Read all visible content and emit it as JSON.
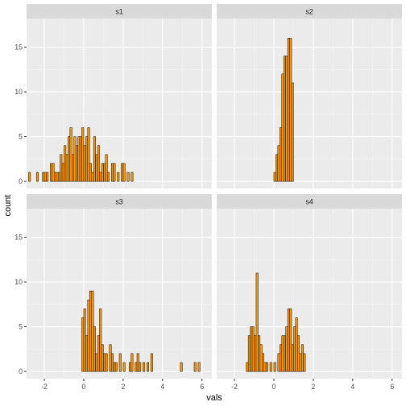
{
  "chart_data": {
    "type": "bar",
    "xlabel": "vals",
    "ylabel": "count",
    "xlim": [
      -2.9,
      6.5
    ],
    "ylim": [
      -0.8,
      18.2
    ],
    "x_ticks": [
      -2,
      0,
      2,
      4,
      6
    ],
    "y_ticks": [
      0,
      5,
      10,
      15
    ],
    "bin_start": -2.8,
    "bin_width": 0.1,
    "bin_count": 90,
    "bar_fill": "#FF9900",
    "bar_stroke": "#000000",
    "panels": [
      {
        "name": "s1",
        "bins": [
          [
            -2.75,
            1
          ],
          [
            -2.35,
            1
          ],
          [
            -2.05,
            1
          ],
          [
            -1.95,
            1
          ],
          [
            -1.85,
            1
          ],
          [
            -1.65,
            2
          ],
          [
            -1.55,
            2
          ],
          [
            -1.45,
            1
          ],
          [
            -1.35,
            1
          ],
          [
            -1.25,
            1
          ],
          [
            -1.15,
            3
          ],
          [
            -1.05,
            2
          ],
          [
            -0.95,
            4
          ],
          [
            -0.85,
            3
          ],
          [
            -0.75,
            5
          ],
          [
            -0.65,
            6
          ],
          [
            -0.55,
            3
          ],
          [
            -0.45,
            5
          ],
          [
            -0.35,
            4
          ],
          [
            -0.25,
            5
          ],
          [
            -0.15,
            5
          ],
          [
            -0.05,
            6
          ],
          [
            0.05,
            4
          ],
          [
            0.15,
            5
          ],
          [
            0.25,
            6
          ],
          [
            0.35,
            2
          ],
          [
            0.45,
            1
          ],
          [
            0.55,
            5
          ],
          [
            0.65,
            3
          ],
          [
            0.75,
            4
          ],
          [
            0.85,
            1
          ],
          [
            0.95,
            2
          ],
          [
            1.05,
            2
          ],
          [
            1.15,
            3
          ],
          [
            1.25,
            1
          ],
          [
            1.45,
            2
          ],
          [
            1.55,
            2
          ],
          [
            1.75,
            1
          ],
          [
            1.95,
            2
          ],
          [
            2.05,
            2
          ],
          [
            2.25,
            1
          ],
          [
            2.45,
            1
          ]
        ]
      },
      {
        "name": "s2",
        "bins": [
          [
            0.05,
            1
          ],
          [
            0.15,
            3
          ],
          [
            0.25,
            4
          ],
          [
            0.35,
            6
          ],
          [
            0.45,
            12
          ],
          [
            0.55,
            14
          ],
          [
            0.65,
            14
          ],
          [
            0.75,
            16
          ],
          [
            0.85,
            16
          ],
          [
            0.95,
            11
          ]
        ]
      },
      {
        "name": "s3",
        "bins": [
          [
            -0.05,
            6
          ],
          [
            0.05,
            7
          ],
          [
            0.15,
            4
          ],
          [
            0.25,
            8
          ],
          [
            0.35,
            9
          ],
          [
            0.45,
            9
          ],
          [
            0.55,
            5
          ],
          [
            0.65,
            2
          ],
          [
            0.75,
            4
          ],
          [
            0.85,
            7
          ],
          [
            0.95,
            3
          ],
          [
            1.05,
            2
          ],
          [
            1.15,
            2
          ],
          [
            1.35,
            3
          ],
          [
            1.45,
            2
          ],
          [
            1.55,
            1
          ],
          [
            1.65,
            1
          ],
          [
            1.85,
            2
          ],
          [
            2.05,
            1
          ],
          [
            2.35,
            1
          ],
          [
            2.45,
            2
          ],
          [
            2.65,
            1
          ],
          [
            2.75,
            2
          ],
          [
            2.85,
            1
          ],
          [
            3.05,
            1
          ],
          [
            3.25,
            1
          ],
          [
            3.45,
            2
          ],
          [
            4.95,
            1
          ],
          [
            5.65,
            1
          ],
          [
            5.85,
            1
          ]
        ]
      },
      {
        "name": "s4",
        "bins": [
          [
            -1.35,
            1
          ],
          [
            -1.25,
            4
          ],
          [
            -1.15,
            5
          ],
          [
            -1.05,
            5
          ],
          [
            -0.95,
            4
          ],
          [
            -0.85,
            11
          ],
          [
            -0.75,
            4
          ],
          [
            -0.65,
            3
          ],
          [
            -0.55,
            2
          ],
          [
            -0.45,
            1
          ],
          [
            -0.35,
            1
          ],
          [
            -0.15,
            1
          ],
          [
            0.05,
            1
          ],
          [
            0.25,
            2
          ],
          [
            0.35,
            3
          ],
          [
            0.45,
            4
          ],
          [
            0.55,
            4
          ],
          [
            0.65,
            5
          ],
          [
            0.75,
            7
          ],
          [
            0.85,
            7
          ],
          [
            0.95,
            3
          ],
          [
            1.05,
            5
          ],
          [
            1.15,
            6
          ],
          [
            1.25,
            4
          ],
          [
            1.35,
            2
          ],
          [
            1.45,
            3
          ],
          [
            1.55,
            2
          ]
        ]
      }
    ]
  }
}
